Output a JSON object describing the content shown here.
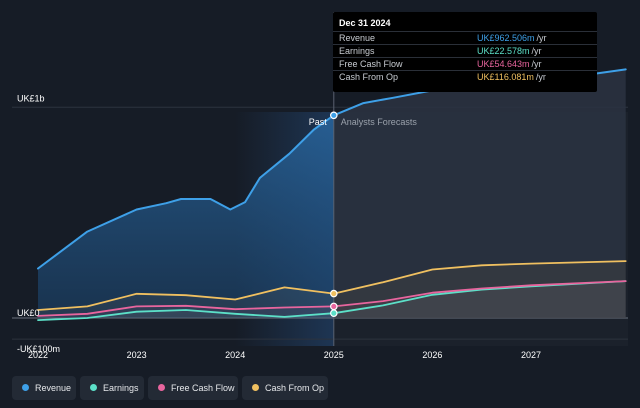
{
  "tooltip": {
    "date": "Dec 31 2024",
    "rows": [
      {
        "label": "Revenue",
        "value": "UK£962.506m",
        "unit": "/yr",
        "color": "#3ea0e8"
      },
      {
        "label": "Earnings",
        "value": "UK£22.578m",
        "unit": "/yr",
        "color": "#5ce0c8"
      },
      {
        "label": "Free Cash Flow",
        "value": "UK£54.643m",
        "unit": "/yr",
        "color": "#e8659e"
      },
      {
        "label": "Cash From Op",
        "value": "UK£116.081m",
        "unit": "/yr",
        "color": "#f0c060"
      }
    ]
  },
  "legend": [
    {
      "label": "Revenue",
      "color": "#3ea0e8"
    },
    {
      "label": "Earnings",
      "color": "#5ce0c8"
    },
    {
      "label": "Free Cash Flow",
      "color": "#e8659e"
    },
    {
      "label": "Cash From Op",
      "color": "#f0c060"
    }
  ],
  "chart_data": {
    "type": "area",
    "y_axis_labels": [
      "UK£1b",
      "UK£0",
      "-UK£100m"
    ],
    "x_tick_labels": [
      "2022",
      "2023",
      "2024",
      "2025",
      "2026",
      "2027"
    ],
    "section_labels": {
      "past": "Past",
      "forecast": "Analysts Forecasts"
    },
    "x_range": [
      2022.0,
      2027.96
    ],
    "y_range_m": [
      -100,
      1000
    ],
    "divider_x": 2025.0,
    "highlight_start_x": 2024.0,
    "series": [
      {
        "name": "Revenue",
        "color": "#3ea0e8",
        "points": [
          [
            2022.0,
            235
          ],
          [
            2022.5,
            410
          ],
          [
            2023.0,
            515
          ],
          [
            2023.3,
            545
          ],
          [
            2023.45,
            565
          ],
          [
            2023.75,
            565
          ],
          [
            2023.95,
            515
          ],
          [
            2024.1,
            550
          ],
          [
            2024.25,
            665
          ],
          [
            2024.55,
            780
          ],
          [
            2024.8,
            895
          ],
          [
            2025.0,
            962
          ],
          [
            2025.3,
            1020
          ],
          [
            2025.6,
            1045
          ],
          [
            2026.0,
            1080
          ],
          [
            2026.5,
            1105
          ],
          [
            2027.0,
            1120
          ],
          [
            2027.5,
            1150
          ],
          [
            2027.96,
            1180
          ]
        ]
      },
      {
        "name": "Earnings",
        "color": "#5ce0c8",
        "points": [
          [
            2022.0,
            -10
          ],
          [
            2022.5,
            0
          ],
          [
            2023.0,
            30
          ],
          [
            2023.5,
            38
          ],
          [
            2024.0,
            20
          ],
          [
            2024.5,
            5
          ],
          [
            2025.0,
            23
          ],
          [
            2025.5,
            60
          ],
          [
            2026.0,
            110
          ],
          [
            2026.5,
            135
          ],
          [
            2027.0,
            150
          ],
          [
            2027.96,
            175
          ]
        ]
      },
      {
        "name": "Free Cash Flow",
        "color": "#e8659e",
        "points": [
          [
            2022.0,
            10
          ],
          [
            2022.5,
            20
          ],
          [
            2023.0,
            55
          ],
          [
            2023.5,
            58
          ],
          [
            2024.0,
            42
          ],
          [
            2024.5,
            50
          ],
          [
            2025.0,
            55
          ],
          [
            2025.5,
            80
          ],
          [
            2026.0,
            120
          ],
          [
            2026.5,
            140
          ],
          [
            2027.0,
            155
          ],
          [
            2027.96,
            175
          ]
        ]
      },
      {
        "name": "Cash From Op",
        "color": "#f0c060",
        "points": [
          [
            2022.0,
            38
          ],
          [
            2022.5,
            55
          ],
          [
            2023.0,
            115
          ],
          [
            2023.5,
            108
          ],
          [
            2024.0,
            88
          ],
          [
            2024.5,
            145
          ],
          [
            2025.0,
            116
          ],
          [
            2025.5,
            170
          ],
          [
            2026.0,
            230
          ],
          [
            2026.5,
            250
          ],
          [
            2027.0,
            258
          ],
          [
            2027.96,
            270
          ]
        ]
      }
    ]
  }
}
